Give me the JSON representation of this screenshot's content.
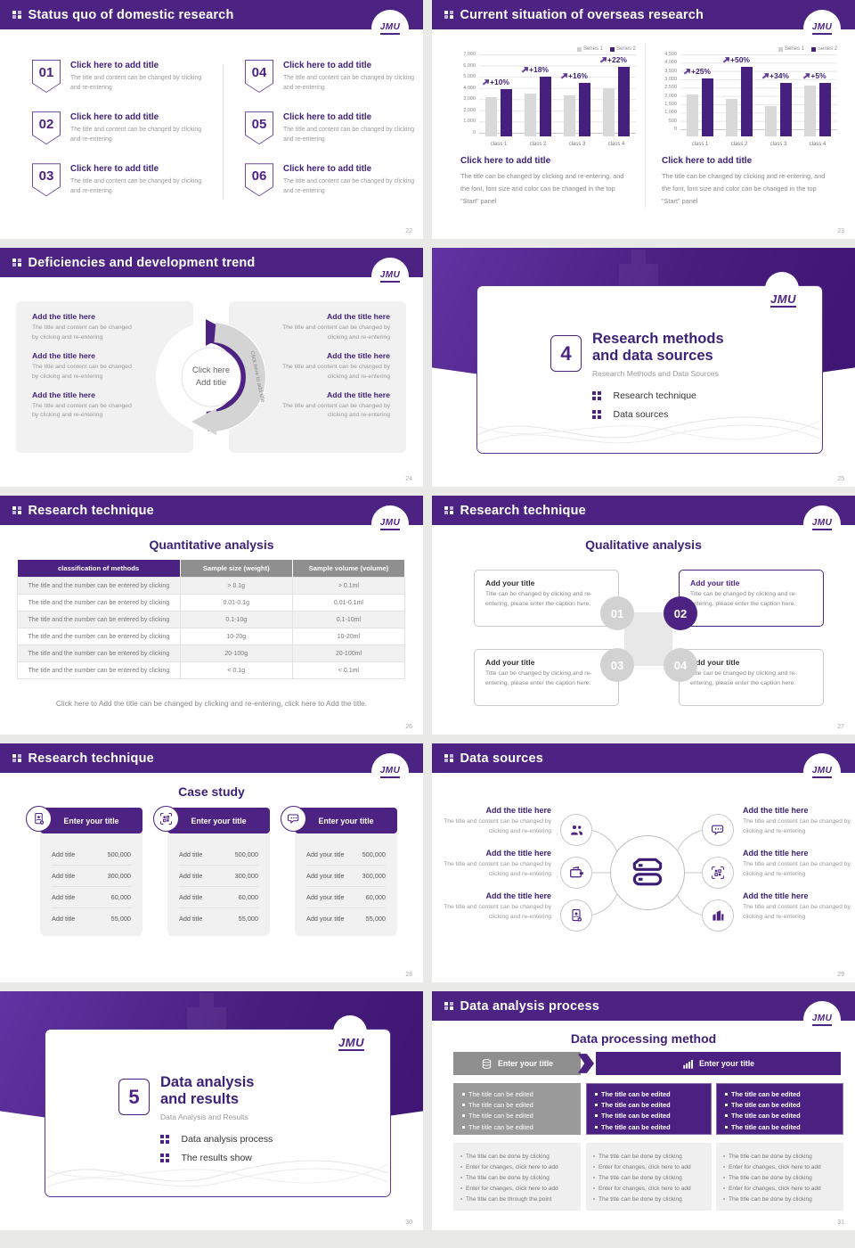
{
  "logo": {
    "text": "JMU"
  },
  "colors": {
    "accent": "#4c2383",
    "bar_purple": "#46207f",
    "bar_gray": "#d9d9d9",
    "panel_gray": "#f1f1f1",
    "header_gray": "#8f8f8f"
  },
  "slides": [
    {
      "page": "22",
      "header": "Status quo of domestic research",
      "items": [
        {
          "num": "01",
          "title": "Click here to add title",
          "desc": "The title and content can be changed by clicking and re-entering"
        },
        {
          "num": "02",
          "title": "Click here to add title",
          "desc": "The title and content can be changed by clicking and re-entering"
        },
        {
          "num": "03",
          "title": "Click here to add title",
          "desc": "The title and content can be changed by clicking and re-entering"
        },
        {
          "num": "04",
          "title": "Click here to add title",
          "desc": "The title and content can be changed by clicking and re-entering"
        },
        {
          "num": "05",
          "title": "Click here to add title",
          "desc": "The title and content can be changed by clicking and re-entering"
        },
        {
          "num": "06",
          "title": "Click here to add title",
          "desc": "The title and content can be changed by clicking and re-entering"
        }
      ]
    },
    {
      "page": "23",
      "header": "Current situation of overseas research",
      "charts": [
        {
          "type": "bar",
          "categories": [
            "class 1",
            "class 2",
            "class 3",
            "class 4"
          ],
          "series": [
            {
              "name": "Series 1",
              "values": [
                3500,
                3800,
                3700,
                4300
              ]
            },
            {
              "name": "Series 2",
              "values": [
                4200,
                5300,
                4800,
                6200
              ]
            }
          ],
          "growth_labels": [
            "+10%",
            "+18%",
            "+16%",
            "+22%"
          ],
          "ymax": 7000,
          "ticks": [
            "0",
            "1,000",
            "2,000",
            "3,000",
            "4,000",
            "5,000",
            "6,000",
            "7,000"
          ],
          "caption_title": "Click here to add title",
          "caption": "The title can be changed by clicking and re-entering, and the font, font size and color can be changed in the top \"Start\" panel"
        },
        {
          "type": "bar",
          "categories": [
            "class 1",
            "class 2",
            "class 3",
            "class 4"
          ],
          "series": [
            {
              "name": "Series 1",
              "values": [
                2500,
                2250,
                1800,
                3050
              ]
            },
            {
              "name": "Series 2",
              "values": [
                3500,
                4200,
                3200,
                3200
              ]
            }
          ],
          "growth_labels": [
            "+25%",
            "+50%",
            "+34%",
            "+5%"
          ],
          "ymax": 4500,
          "ticks": [
            "0",
            "500",
            "1,000",
            "1,500",
            "2,000",
            "2,500",
            "3,000",
            "3,500",
            "4,000",
            "4,500"
          ],
          "caption_title": "Click here to add title",
          "caption": "The title can be changed by clicking and re-entering, and the font, font size and color can be changed in the top \"Start\" panel"
        }
      ]
    },
    {
      "page": "24",
      "header": "Deficiencies and development trend",
      "left_items": [
        {
          "title": "Add the title here",
          "desc": "The title and content can be changed by clicking and re-entering"
        },
        {
          "title": "Add the title here",
          "desc": "The title and content can be changed by clicking and re-entering"
        },
        {
          "title": "Add the title here",
          "desc": "The title and content can be changed by clicking and re-entering"
        }
      ],
      "right_items": [
        {
          "title": "Add the title here",
          "desc": "The title and content can be changed by clicking and re-entering"
        },
        {
          "title": "Add the title here",
          "desc": "The title and content can be changed by clicking and re-entering"
        },
        {
          "title": "Add the title here",
          "desc": "The title and content can be changed by clicking and re-entering"
        }
      ],
      "center": {
        "line1": "Click here",
        "line2": "Add title",
        "arc_left": "Click here to add title",
        "arc_right": "Click here to add title"
      }
    },
    {
      "page": "25",
      "number": "4",
      "title_line1": "Research methods",
      "title_line2": "and data sources",
      "subtitle": "Research Methods and Data Sources",
      "items": [
        "Research technique",
        "Data sources"
      ]
    },
    {
      "page": "26",
      "header": "Research technique",
      "title": "Quantitative analysis",
      "table": {
        "headers": [
          "classification of methods",
          "Sample size (weight)",
          "Sample volume (volume)"
        ],
        "rows": [
          [
            "The title and the number can be entered by clicking",
            "> 0.1g",
            "> 0.1ml"
          ],
          [
            "The title and the number can be entered by clicking",
            "0.01-0.1g",
            "0.01-0.1ml"
          ],
          [
            "The title and the number can be entered by clicking",
            "0.1-10g",
            "0.1-10ml"
          ],
          [
            "The title and the number can be entered by clicking",
            "10-20g",
            "10-20ml"
          ],
          [
            "The title and the number can be entered by clicking",
            "20-100g",
            "20-100ml"
          ],
          [
            "The title and the number can be entered by clicking",
            "< 0.1g",
            "< 0.1ml"
          ]
        ]
      },
      "footer": "Click here to Add the title can be changed by clicking and re-entering, click here to Add the title."
    },
    {
      "page": "27",
      "header": "Research technique",
      "title": "Qualitative analysis",
      "numbers": [
        "01",
        "02",
        "03",
        "04"
      ],
      "cards": [
        {
          "title": "Add your title",
          "desc": "Title can be changed by clicking and re-entering, please enter the caption here."
        },
        {
          "title": "Add your title",
          "desc": "Title can be changed by clicking and re-entering, please enter the caption here."
        },
        {
          "title": "Add your title",
          "desc": "Title can be changed by clicking and re-entering, please enter the caption here."
        },
        {
          "title": "Add your title",
          "desc": "Title can be changed by clicking and re-entering, please enter the caption here."
        }
      ]
    },
    {
      "page": "28",
      "header": "Research technique",
      "title": "Case study",
      "panels": [
        {
          "icon": "contact-add-icon",
          "header": "Enter your title",
          "rows": [
            {
              "label": "Add title",
              "value": "500,000"
            },
            {
              "label": "Add title",
              "value": "300,000"
            },
            {
              "label": "Add title",
              "value": "60,000"
            },
            {
              "label": "Add title",
              "value": "55,000"
            }
          ]
        },
        {
          "icon": "qr-scan-icon",
          "header": "Enter your title",
          "rows": [
            {
              "label": "Add title",
              "value": "500,000"
            },
            {
              "label": "Add title",
              "value": "300,000"
            },
            {
              "label": "Add title",
              "value": "60,000"
            },
            {
              "label": "Add title",
              "value": "55,000"
            }
          ]
        },
        {
          "icon": "chat-icon",
          "header": "Enter your title",
          "rows": [
            {
              "label": "Add your title",
              "value": "500,000"
            },
            {
              "label": "Add your title",
              "value": "300,000"
            },
            {
              "label": "Add your title",
              "value": "60,000"
            },
            {
              "label": "Add your title",
              "value": "55,000"
            }
          ]
        }
      ]
    },
    {
      "page": "29",
      "header": "Data sources",
      "left_items": [
        {
          "icon": "people-icon",
          "title": "Add the title here",
          "desc": "The title and content can be changed by clicking and re-entering"
        },
        {
          "icon": "wallet-icon",
          "title": "Add the title here",
          "desc": "The title and content can be changed by clicking and re-entering"
        },
        {
          "icon": "contact-add-icon",
          "title": "Add the title here",
          "desc": "The title and content can be changed by clicking and re-entering"
        }
      ],
      "right_items": [
        {
          "icon": "chat-icon",
          "title": "Add the title here",
          "desc": "The title and content can be changed by clicking and re-entering"
        },
        {
          "icon": "qr-scan-icon",
          "title": "Add the title here",
          "desc": "The title and content can be changed by clicking and re-entering"
        },
        {
          "icon": "building-icon",
          "title": "Add the title here",
          "desc": "The title and content can be changed by clicking and re-entering"
        }
      ]
    },
    {
      "page": "30",
      "number": "5",
      "title_line1": "Data analysis",
      "title_line2": "and results",
      "subtitle": "Data Analysis and Results",
      "items": [
        "Data analysis process",
        "The results show"
      ]
    },
    {
      "page": "31",
      "header": "Data analysis process",
      "title": "Data processing method",
      "flow_headers": [
        {
          "icon": "database-icon",
          "label": "Enter your title"
        },
        {
          "icon": "bar-chart-icon",
          "label": "Enter your title"
        }
      ],
      "edit_boxes": [
        [
          "The title can be edited",
          "The title can be edited",
          "The title can be edited",
          "The title can be edited"
        ],
        [
          "The title can be edited",
          "The title can be edited",
          "The title can be edited",
          "The title can be edited"
        ],
        [
          "The title can be edited",
          "The title can be edited",
          "The title can be edited",
          "The title can be edited"
        ]
      ],
      "note_boxes": [
        [
          "The title can be done by clicking",
          "Enter for changes, click here to add",
          "The title can be done by clicking",
          "Enter for changes, click here to add",
          "The title can be through the point"
        ],
        [
          "The title can be done by clicking",
          "Enter for changes, click here to add",
          "The title can be done by clicking",
          "Enter for changes, click here to add",
          "The title can be done by clicking"
        ],
        [
          "The title can be done by clicking",
          "Enter for changes, click here to add",
          "The title can be done by clicking",
          "Enter for changes, click here to add",
          "The title can be done by clicking"
        ]
      ]
    }
  ]
}
